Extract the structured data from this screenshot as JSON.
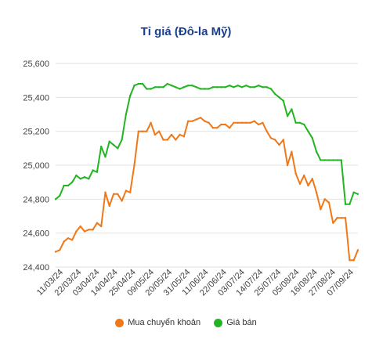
{
  "chart_data": {
    "type": "line",
    "title": "Tỉ giá (Đô-la Mỹ)",
    "ylim": [
      24400,
      25600
    ],
    "y_ticks": [
      24400,
      24600,
      24800,
      25000,
      25200,
      25400,
      25600
    ],
    "y_tick_labels": [
      "24,400",
      "24,600",
      "24,800",
      "25,000",
      "25,200",
      "25,400",
      "25,600"
    ],
    "x_tick_labels": [
      "11/03/24",
      "22/03/24",
      "03/04/24",
      "14/04/24",
      "25/04/24",
      "09/05/24",
      "20/05/24",
      "31/05/24",
      "11/06/24",
      "22/06/24",
      "03/07/24",
      "14/07/24",
      "25/07/24",
      "05/08/24",
      "16/08/24",
      "27/08/24",
      "07/09/24"
    ],
    "grid": "horizontal",
    "legend_position": "bottom",
    "series": [
      {
        "name": "Mua chuyển khoản",
        "color": "#f07818",
        "points": [
          [
            0,
            24490
          ],
          [
            1,
            24500
          ],
          [
            2,
            24550
          ],
          [
            3,
            24570
          ],
          [
            4,
            24560
          ],
          [
            5,
            24610
          ],
          [
            6,
            24640
          ],
          [
            7,
            24610
          ],
          [
            8,
            24620
          ],
          [
            9,
            24620
          ],
          [
            10,
            24660
          ],
          [
            11,
            24640
          ],
          [
            12,
            24840
          ],
          [
            13,
            24760
          ],
          [
            14,
            24830
          ],
          [
            15,
            24830
          ],
          [
            16,
            24790
          ],
          [
            17,
            24850
          ],
          [
            18,
            24840
          ],
          [
            19,
            25000
          ],
          [
            20,
            25200
          ],
          [
            21,
            25200
          ],
          [
            22,
            25200
          ],
          [
            23,
            25250
          ],
          [
            24,
            25180
          ],
          [
            25,
            25200
          ],
          [
            26,
            25150
          ],
          [
            27,
            25150
          ],
          [
            28,
            25180
          ],
          [
            29,
            25150
          ],
          [
            30,
            25180
          ],
          [
            31,
            25170
          ],
          [
            32,
            25260
          ],
          [
            33,
            25260
          ],
          [
            34,
            25270
          ],
          [
            35,
            25280
          ],
          [
            36,
            25260
          ],
          [
            37,
            25250
          ],
          [
            38,
            25220
          ],
          [
            39,
            25220
          ],
          [
            40,
            25240
          ],
          [
            41,
            25240
          ],
          [
            42,
            25220
          ],
          [
            43,
            25250
          ],
          [
            44,
            25250
          ],
          [
            45,
            25250
          ],
          [
            46,
            25250
          ],
          [
            47,
            25250
          ],
          [
            48,
            25260
          ],
          [
            49,
            25240
          ],
          [
            50,
            25250
          ],
          [
            51,
            25200
          ],
          [
            52,
            25160
          ],
          [
            53,
            25150
          ],
          [
            54,
            25120
          ],
          [
            55,
            25150
          ],
          [
            56,
            25000
          ],
          [
            57,
            25080
          ],
          [
            58,
            24950
          ],
          [
            59,
            24890
          ],
          [
            60,
            24940
          ],
          [
            61,
            24880
          ],
          [
            62,
            24920
          ],
          [
            63,
            24840
          ],
          [
            64,
            24740
          ],
          [
            65,
            24800
          ],
          [
            66,
            24780
          ],
          [
            67,
            24660
          ],
          [
            68,
            24690
          ],
          [
            69,
            24690
          ],
          [
            70,
            24690
          ],
          [
            71,
            24440
          ],
          [
            72,
            24440
          ],
          [
            73,
            24500
          ]
        ]
      },
      {
        "name": "Giá bán",
        "color": "#22b422",
        "points": [
          [
            0,
            24800
          ],
          [
            1,
            24820
          ],
          [
            2,
            24880
          ],
          [
            3,
            24880
          ],
          [
            4,
            24900
          ],
          [
            5,
            24940
          ],
          [
            6,
            24920
          ],
          [
            7,
            24930
          ],
          [
            8,
            24920
          ],
          [
            9,
            24970
          ],
          [
            10,
            24960
          ],
          [
            11,
            25110
          ],
          [
            12,
            25050
          ],
          [
            13,
            25140
          ],
          [
            14,
            25120
          ],
          [
            15,
            25100
          ],
          [
            16,
            25150
          ],
          [
            17,
            25300
          ],
          [
            18,
            25410
          ],
          [
            19,
            25470
          ],
          [
            20,
            25480
          ],
          [
            21,
            25480
          ],
          [
            22,
            25450
          ],
          [
            23,
            25450
          ],
          [
            24,
            25460
          ],
          [
            25,
            25460
          ],
          [
            26,
            25460
          ],
          [
            27,
            25480
          ],
          [
            28,
            25470
          ],
          [
            29,
            25460
          ],
          [
            30,
            25450
          ],
          [
            31,
            25460
          ],
          [
            32,
            25470
          ],
          [
            33,
            25470
          ],
          [
            34,
            25460
          ],
          [
            35,
            25450
          ],
          [
            36,
            25450
          ],
          [
            37,
            25450
          ],
          [
            38,
            25460
          ],
          [
            39,
            25460
          ],
          [
            40,
            25460
          ],
          [
            41,
            25460
          ],
          [
            42,
            25470
          ],
          [
            43,
            25460
          ],
          [
            44,
            25470
          ],
          [
            45,
            25460
          ],
          [
            46,
            25470
          ],
          [
            47,
            25460
          ],
          [
            48,
            25460
          ],
          [
            49,
            25470
          ],
          [
            50,
            25460
          ],
          [
            51,
            25460
          ],
          [
            52,
            25450
          ],
          [
            53,
            25420
          ],
          [
            54,
            25400
          ],
          [
            55,
            25380
          ],
          [
            56,
            25290
          ],
          [
            57,
            25330
          ],
          [
            58,
            25250
          ],
          [
            59,
            25250
          ],
          [
            60,
            25240
          ],
          [
            61,
            25200
          ],
          [
            62,
            25160
          ],
          [
            63,
            25080
          ],
          [
            64,
            25030
          ],
          [
            65,
            25030
          ],
          [
            66,
            25030
          ],
          [
            67,
            25030
          ],
          [
            68,
            25030
          ],
          [
            69,
            25030
          ],
          [
            70,
            24770
          ],
          [
            71,
            24770
          ],
          [
            72,
            24840
          ],
          [
            73,
            24830
          ]
        ]
      }
    ]
  }
}
